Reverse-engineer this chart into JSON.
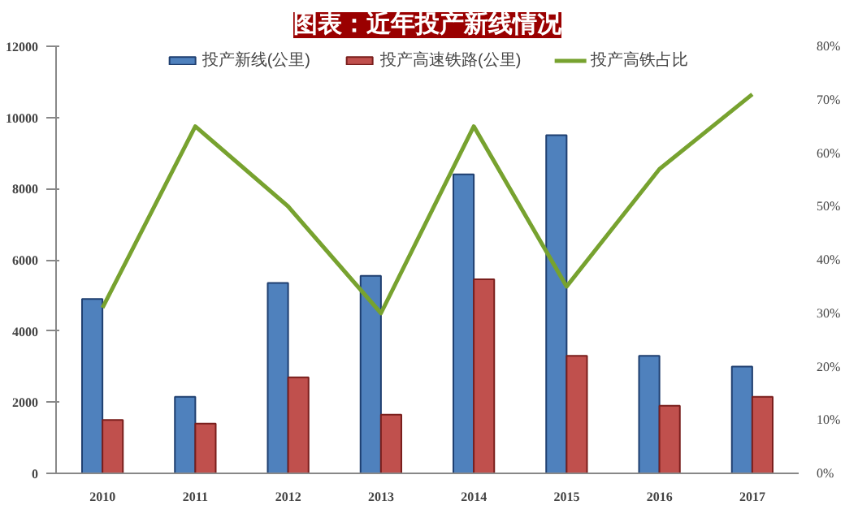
{
  "chart_data": {
    "type": "bar",
    "title": "图表：近年投产新线情况",
    "categories": [
      "2010",
      "2011",
      "2012",
      "2013",
      "2014",
      "2015",
      "2016",
      "2017"
    ],
    "series": [
      {
        "name": "投产新线(公里)",
        "color": "#4f81bd",
        "values": [
          4900,
          2150,
          5350,
          5550,
          8400,
          9500,
          3300,
          3000
        ]
      },
      {
        "name": "投产高速铁路(公里)",
        "color": "#c0504d",
        "values": [
          1500,
          1400,
          2700,
          1650,
          5450,
          3300,
          1900,
          2150
        ]
      },
      {
        "name": "投产高铁占比",
        "color": "#77a22f",
        "type": "line",
        "axis": "y2",
        "values": [
          31,
          65,
          50,
          30,
          65,
          35,
          57,
          71
        ]
      }
    ],
    "ylim": [
      0,
      12000
    ],
    "yticks": [
      0,
      2000,
      4000,
      6000,
      8000,
      10000,
      12000
    ],
    "y2lim": [
      0,
      80
    ],
    "y2ticks": [
      {
        "value": 0,
        "label": "0%"
      },
      {
        "value": 10,
        "label": "10%"
      },
      {
        "value": 20,
        "label": "20%"
      },
      {
        "value": 30,
        "label": "30%"
      },
      {
        "value": 40,
        "label": "40%"
      },
      {
        "value": 50,
        "label": "50%"
      },
      {
        "value": 60,
        "label": "60%"
      },
      {
        "value": 70,
        "label": "70%"
      },
      {
        "value": 80,
        "label": "80%"
      }
    ],
    "grid": false,
    "legend": "top",
    "marker": "none",
    "line_style": "solid"
  }
}
